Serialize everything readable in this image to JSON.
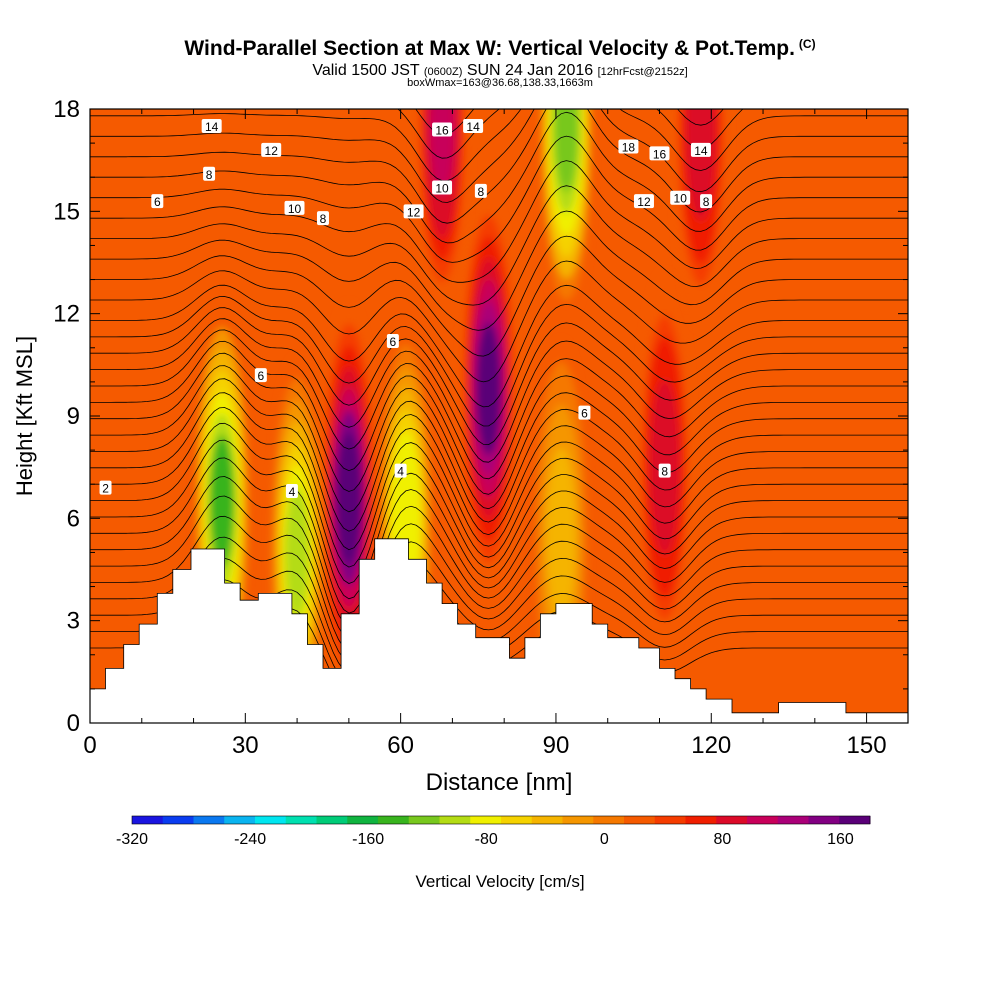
{
  "title": "Wind-Parallel Section at Max W: Vertical Velocity & Pot.Temp.",
  "title_mark": "(C)",
  "subtitle_main": "Valid 1500 JST",
  "subtitle_utc": "(0600Z)",
  "subtitle_date": "SUN 24 Jan 2016",
  "subtitle_fcst": "[12hrFcst@2152z]",
  "subtitle_box": "boxWmax=163@36.68,138.33,1663m",
  "chart_data": {
    "type": "heatmap",
    "xlabel": "Distance [nm]",
    "ylabel": "Height [Kft MSL]",
    "xlim": [
      0,
      158
    ],
    "ylim": [
      0,
      18
    ],
    "x_ticks": [
      "0",
      "30",
      "60",
      "90",
      "120",
      "150"
    ],
    "y_ticks": [
      "0",
      "3",
      "6",
      "9",
      "12",
      "15",
      "18"
    ],
    "colorbar": {
      "label": "Vertical Velocity [cm/s]",
      "range": [
        -320,
        180
      ],
      "tick_labels": [
        "-320",
        "-240",
        "-160",
        "-80",
        "0",
        "80",
        "160"
      ],
      "colors": [
        "#1a14e0",
        "#0a3cf0",
        "#0a78f0",
        "#0ab4f0",
        "#00e6f0",
        "#00e0b0",
        "#00cc78",
        "#10b440",
        "#38b41e",
        "#78c81e",
        "#b4dc14",
        "#f0f000",
        "#f5d200",
        "#f5b400",
        "#f59600",
        "#f57800",
        "#f55a00",
        "#f53c00",
        "#f01e00",
        "#dc0a28",
        "#c8005a",
        "#aa0078",
        "#820082",
        "#5a0078"
      ]
    },
    "terrain_nm_kft": [
      [
        0,
        1.0
      ],
      [
        3,
        1.0
      ],
      [
        3,
        1.6
      ],
      [
        6.5,
        1.6
      ],
      [
        6.5,
        2.3
      ],
      [
        9.5,
        2.3
      ],
      [
        9.5,
        2.9
      ],
      [
        13,
        2.9
      ],
      [
        13,
        3.8
      ],
      [
        16,
        3.8
      ],
      [
        16,
        4.5
      ],
      [
        19.5,
        4.5
      ],
      [
        19.5,
        5.1
      ],
      [
        26,
        5.1
      ],
      [
        26,
        4.1
      ],
      [
        29,
        4.1
      ],
      [
        29,
        3.6
      ],
      [
        32.5,
        3.6
      ],
      [
        32.5,
        3.8
      ],
      [
        39,
        3.8
      ],
      [
        39,
        3.2
      ],
      [
        42,
        3.2
      ],
      [
        42,
        2.3
      ],
      [
        45,
        2.3
      ],
      [
        45,
        1.6
      ],
      [
        48.5,
        1.6
      ],
      [
        48.5,
        3.2
      ],
      [
        52,
        3.2
      ],
      [
        52,
        4.8
      ],
      [
        55,
        4.8
      ],
      [
        55,
        5.4
      ],
      [
        61.5,
        5.4
      ],
      [
        61.5,
        4.8
      ],
      [
        65,
        4.8
      ],
      [
        65,
        4.1
      ],
      [
        68,
        4.1
      ],
      [
        68,
        3.5
      ],
      [
        71,
        3.5
      ],
      [
        71,
        2.9
      ],
      [
        74.5,
        2.9
      ],
      [
        74.5,
        2.5
      ],
      [
        81,
        2.5
      ],
      [
        81,
        1.9
      ],
      [
        84,
        1.9
      ],
      [
        84,
        2.5
      ],
      [
        87,
        2.5
      ],
      [
        87,
        3.2
      ],
      [
        90,
        3.2
      ],
      [
        90,
        3.5
      ],
      [
        97,
        3.5
      ],
      [
        97,
        2.9
      ],
      [
        100,
        2.9
      ],
      [
        100,
        2.5
      ],
      [
        106,
        2.5
      ],
      [
        106,
        2.2
      ],
      [
        110,
        2.2
      ],
      [
        110,
        1.6
      ],
      [
        113,
        1.6
      ],
      [
        113,
        1.3
      ],
      [
        116,
        1.3
      ],
      [
        116,
        1.0
      ],
      [
        119,
        1.0
      ],
      [
        119,
        0.7
      ],
      [
        124,
        0.7
      ],
      [
        124,
        0.3
      ],
      [
        133,
        0.3
      ],
      [
        133,
        0.6
      ],
      [
        146,
        0.6
      ],
      [
        146,
        0.3
      ],
      [
        158,
        0.3
      ]
    ],
    "w_features_cm_s": [
      {
        "x": 50,
        "y": 6.6,
        "w": 165
      },
      {
        "x": 77,
        "y": 9.8,
        "w": 160
      },
      {
        "x": 111,
        "y": 7.5,
        "w": 95
      },
      {
        "x": 118,
        "y": 17.3,
        "w": 95
      },
      {
        "x": 68,
        "y": 17.4,
        "w": 110
      },
      {
        "x": 25.5,
        "y": 6.5,
        "w": -135
      },
      {
        "x": 40,
        "y": 5,
        "w": -95
      },
      {
        "x": 61,
        "y": 6,
        "w": -90
      },
      {
        "x": 91,
        "y": 5.5,
        "w": -45
      },
      {
        "x": 92,
        "y": 17.5,
        "w": -120
      }
    ],
    "theta_contour_labels": [
      {
        "text": "2",
        "x": 3,
        "y": 6.9
      },
      {
        "text": "4",
        "x": 39,
        "y": 6.8
      },
      {
        "text": "4",
        "x": 60,
        "y": 7.4
      },
      {
        "text": "6",
        "x": 13,
        "y": 15.3
      },
      {
        "text": "6",
        "x": 33,
        "y": 10.2
      },
      {
        "text": "6",
        "x": 58.5,
        "y": 11.2
      },
      {
        "text": "6",
        "x": 95.5,
        "y": 9.1
      },
      {
        "text": "8",
        "x": 23,
        "y": 16.1
      },
      {
        "text": "8",
        "x": 45,
        "y": 14.8
      },
      {
        "text": "8",
        "x": 75.5,
        "y": 15.6
      },
      {
        "text": "8",
        "x": 111,
        "y": 7.4
      },
      {
        "text": "8",
        "x": 119,
        "y": 15.3
      },
      {
        "text": "10",
        "x": 39.5,
        "y": 15.1
      },
      {
        "text": "10",
        "x": 68,
        "y": 15.7
      },
      {
        "text": "10",
        "x": 114,
        "y": 15.4
      },
      {
        "text": "12",
        "x": 35,
        "y": 16.8
      },
      {
        "text": "12",
        "x": 62.5,
        "y": 15.0
      },
      {
        "text": "12",
        "x": 107,
        "y": 15.3
      },
      {
        "text": "14",
        "x": 23.5,
        "y": 17.5
      },
      {
        "text": "14",
        "x": 74,
        "y": 17.5
      },
      {
        "text": "14",
        "x": 118,
        "y": 16.8
      },
      {
        "text": "16",
        "x": 68,
        "y": 17.4
      },
      {
        "text": "16",
        "x": 110,
        "y": 16.7
      },
      {
        "text": "18",
        "x": 104,
        "y": 16.9
      }
    ]
  }
}
